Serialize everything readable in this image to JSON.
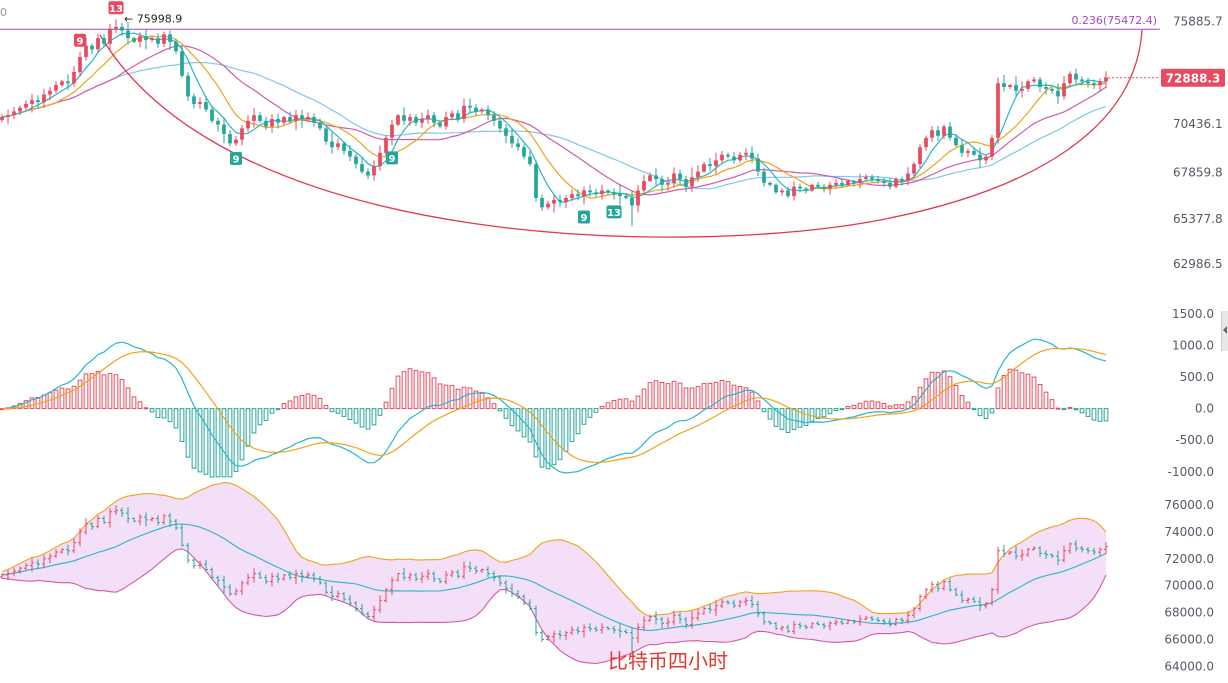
{
  "chart_data": [
    {
      "type": "candlestick",
      "panel": "price",
      "y_ticks": [
        "75885.7",
        "70436.1",
        "67859.8",
        "65377.8",
        "62986.5"
      ],
      "y_tick_values": [
        75885.7,
        70436.1,
        67859.8,
        65377.8,
        62986.5
      ],
      "ylim": [
        61500,
        76600
      ],
      "current_price_label": "72888.3",
      "current_price": 72888.3,
      "peak_label": "← 75998.9",
      "fib_label": "0.236(75472.4)",
      "fib_level": 75472.4,
      "td_markers": [
        {
          "text": "9",
          "index": 13,
          "position": "above",
          "color": "#e84a5f"
        },
        {
          "text": "13",
          "index": 19,
          "position": "above",
          "color": "#e84a5f"
        },
        {
          "text": "9",
          "index": 39,
          "position": "below",
          "color": "#26a69a"
        },
        {
          "text": "9",
          "index": 65,
          "position": "below",
          "color": "#26a69a"
        },
        {
          "text": "9",
          "index": 97,
          "position": "below",
          "color": "#26a69a"
        },
        {
          "text": "13",
          "index": 102,
          "position": "below",
          "color": "#26a69a"
        }
      ],
      "arc": "red curved support line from the 76000 top across the 65000 low to the upper right",
      "closes": [
        70800,
        70900,
        71100,
        71300,
        71500,
        71700,
        71600,
        72000,
        72200,
        72500,
        72700,
        72600,
        73200,
        74000,
        74600,
        74400,
        75000,
        74700,
        75500,
        75600,
        75400,
        75000,
        74800,
        75100,
        74900,
        75000,
        74700,
        75200,
        74800,
        74300,
        73000,
        71900,
        71500,
        71600,
        71200,
        70600,
        70400,
        69900,
        69400,
        69600,
        70200,
        70600,
        70900,
        70600,
        70300,
        70700,
        70500,
        70800,
        70600,
        70900,
        70700,
        70800,
        70500,
        70200,
        69500,
        69200,
        69400,
        69000,
        68700,
        68300,
        67900,
        67700,
        68200,
        68900,
        69700,
        70400,
        70900,
        70600,
        70800,
        70500,
        70700,
        70900,
        70500,
        70300,
        70800,
        71000,
        70700,
        71400,
        71300,
        71100,
        71200,
        70900,
        70600,
        70200,
        69800,
        69400,
        69200,
        68700,
        68300,
        66500,
        66000,
        66200,
        66400,
        66300,
        66500,
        66700,
        66600,
        66900,
        66800,
        66700,
        66900,
        66800,
        66700,
        66600,
        66500,
        66100,
        66900,
        67400,
        67700,
        67500,
        67200,
        67300,
        67800,
        67500,
        67100,
        67600,
        67900,
        68300,
        68200,
        68500,
        68800,
        68700,
        68500,
        68800,
        68900,
        68600,
        67900,
        67300,
        67200,
        66800,
        66900,
        66600,
        67100,
        67000,
        66900,
        67200,
        67100,
        67000,
        67200,
        67300,
        67200,
        67400,
        67300,
        67500,
        67600,
        67500,
        67400,
        67300,
        67100,
        67500,
        67400,
        67800,
        68300,
        69200,
        69700,
        70100,
        69800,
        70300,
        69700,
        69300,
        68900,
        69000,
        68800,
        68500,
        68700,
        69700,
        72600,
        72400,
        72500,
        72200,
        72300,
        72700,
        72800,
        72400,
        72300,
        72200,
        71900,
        72600,
        73100,
        72800,
        72700,
        72600,
        72500,
        72700,
        72900
      ]
    },
    {
      "type": "macd",
      "panel": "macd",
      "y_ticks": [
        "1500.0",
        "1000.0",
        "500.0",
        "0.0",
        "-500.0",
        "-1000.0"
      ],
      "y_tick_values": [
        1500,
        1000,
        500,
        0,
        -500,
        -1000
      ],
      "ylim": [
        -1130,
        1640
      ],
      "series": [
        {
          "name": "DIF",
          "color": "#26b7c9"
        },
        {
          "name": "DEA",
          "color": "#f0a31a"
        },
        {
          "name": "MACD histogram",
          "color_up": "#e84a5f",
          "color_down": "#26a69a"
        }
      ]
    },
    {
      "type": "bollinger",
      "panel": "bollinger",
      "y_ticks": [
        "76000.0",
        "74000.0",
        "72000.0",
        "70000.0",
        "68000.0",
        "66000.0",
        "64000.0"
      ],
      "y_tick_values": [
        76000,
        74000,
        72000,
        70000,
        68000,
        66000,
        64000
      ],
      "ylim": [
        63200,
        76600
      ],
      "band_fill": "#f2dcf7"
    }
  ],
  "colors": {
    "up": "#e84a5f",
    "down": "#26a69a",
    "arc": "#e0384f",
    "fib_line": "#a347c4",
    "ma5": "#26b7c9",
    "ma10": "#f0a31a",
    "ma20": "#d25aa8",
    "ma30": "#7fc8e8",
    "price_tag_bg": "#e84a5f",
    "watermark": "#e03a2f"
  },
  "watermark": "比特币四小时",
  "top_left_glyph": "0"
}
